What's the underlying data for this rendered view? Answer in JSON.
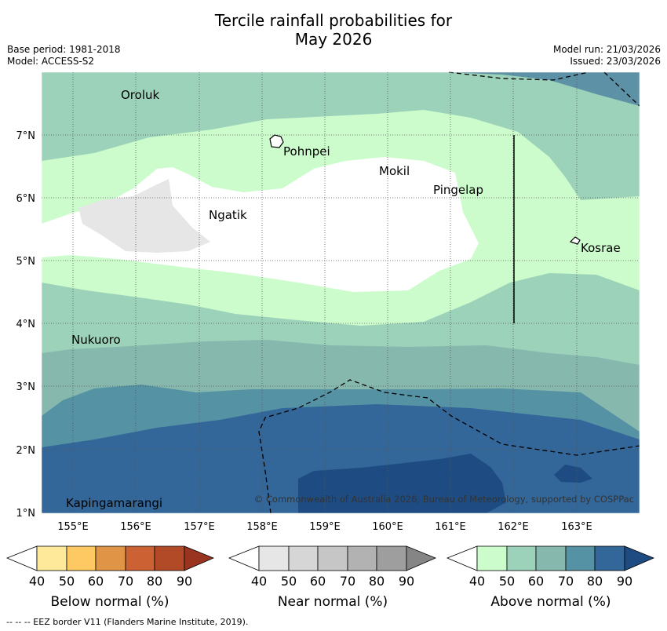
{
  "title": {
    "line1": "Tercile rainfall probabilities for",
    "line2": "May 2026"
  },
  "meta": {
    "base_period": "Base period: 1981-2018",
    "model": "Model: ACCESS-S2",
    "model_run": "Model run: 21/03/2026",
    "issued": "Issued: 23/03/2026"
  },
  "map": {
    "x_ticks": [
      "155°E",
      "156°E",
      "157°E",
      "158°E",
      "159°E",
      "160°E",
      "161°E",
      "162°E",
      "163°E"
    ],
    "y_ticks": [
      "7°N",
      "6°N",
      "5°N",
      "4°N",
      "3°N",
      "2°N",
      "1°N"
    ],
    "places": [
      "Oroluk",
      "Pohnpei",
      "Mokil",
      "Pingelap",
      "Ngatik",
      "Kosrae",
      "Nukuoro",
      "Kapingamarangi"
    ],
    "copyright": "© Commonwealth of Australia 2026, Bureau of Meteorology, supported by COSPPac"
  },
  "legends": [
    {
      "label": "Below normal (%)",
      "ticks": [
        "40",
        "50",
        "60",
        "70",
        "80",
        "90"
      ],
      "colors": [
        "#ffffff",
        "#fee99a",
        "#fec862",
        "#e09546",
        "#cc6133",
        "#b24a28",
        "#993421"
      ]
    },
    {
      "label": "Near normal (%)",
      "ticks": [
        "40",
        "50",
        "60",
        "70",
        "80",
        "90"
      ],
      "colors": [
        "#ffffff",
        "#e6e6e6",
        "#d6d6d6",
        "#c6c6c6",
        "#b2b2b2",
        "#9e9e9e",
        "#858585"
      ]
    },
    {
      "label": "Above normal (%)",
      "ticks": [
        "40",
        "50",
        "60",
        "70",
        "80",
        "90"
      ],
      "colors": [
        "#ffffff",
        "#ccfccc",
        "#9bd2b9",
        "#86b8ae",
        "#5593a4",
        "#336699",
        "#1e4c82"
      ]
    }
  ],
  "footnote": "--  --  -- EEZ border V11 (Flanders Marine Institute, 2019)."
}
